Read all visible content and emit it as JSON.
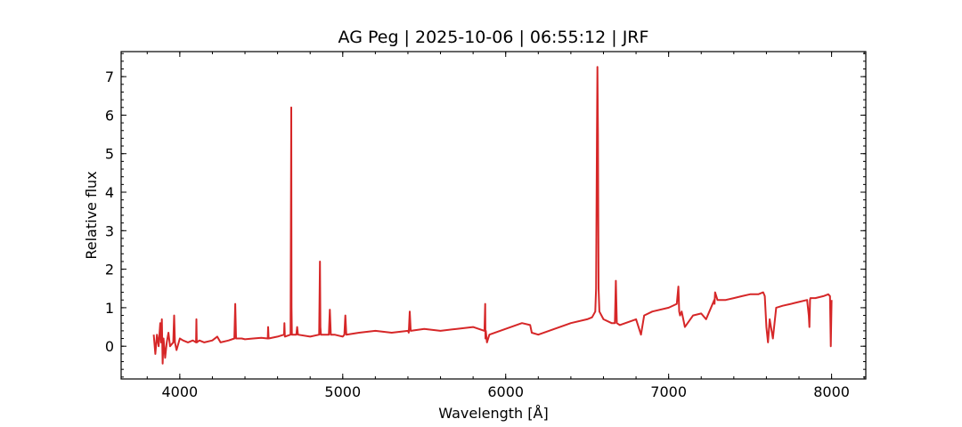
{
  "chart_data": {
    "type": "line",
    "title": "AG Peg | 2025-10-06 | 06:55:12 | JRF",
    "xlabel": "Wavelength [Å]",
    "ylabel": "Relative flux",
    "xlim": [
      3640,
      8210
    ],
    "ylim": [
      -0.85,
      7.65
    ],
    "x_ticks": [
      4000,
      5000,
      6000,
      7000,
      8000
    ],
    "y_ticks": [
      0,
      1,
      2,
      3,
      4,
      5,
      6,
      7
    ],
    "x_minor_step": 200,
    "y_minor_step": 0.2,
    "tick_direction": "in",
    "grid": false,
    "series": [
      {
        "color": "#d62728",
        "x": [
          3840,
          3850,
          3860,
          3870,
          3880,
          3885,
          3890,
          3895,
          3900,
          3910,
          3920,
          3930,
          3940,
          3960,
          3965,
          3970,
          3980,
          4000,
          4020,
          4050,
          4080,
          4100,
          4102,
          4104,
          4120,
          4150,
          4200,
          4230,
          4250,
          4300,
          4335,
          4340,
          4345,
          4380,
          4400,
          4450,
          4500,
          4540,
          4542,
          4545,
          4600,
          4640,
          4642,
          4645,
          4680,
          4684,
          4686,
          4688,
          4692,
          4715,
          4720,
          4725,
          4800,
          4855,
          4860,
          4863,
          4866,
          4900,
          4915,
          4921,
          4927,
          4950,
          5000,
          5010,
          5016,
          5022,
          5100,
          5200,
          5300,
          5400,
          5405,
          5411,
          5417,
          5500,
          5600,
          5700,
          5800,
          5870,
          5874,
          5876,
          5878,
          5885,
          5900,
          6000,
          6100,
          6150,
          6160,
          6200,
          6300,
          6400,
          6500,
          6530,
          6550,
          6555,
          6560,
          6563,
          6566,
          6570,
          6575,
          6600,
          6650,
          6670,
          6676,
          6682,
          6700,
          6800,
          6830,
          6850,
          6900,
          7000,
          7050,
          7060,
          7065,
          7070,
          7080,
          7100,
          7150,
          7200,
          7230,
          7250,
          7280,
          7282,
          7285,
          7300,
          7350,
          7400,
          7450,
          7500,
          7550,
          7580,
          7590,
          7600,
          7610,
          7620,
          7640,
          7660,
          7700,
          7750,
          7800,
          7850,
          7860,
          7864,
          7868,
          7870,
          7900,
          7950,
          7980,
          7990,
          7995,
          8000
        ],
        "y": [
          0.3,
          -0.2,
          0.3,
          0.0,
          0.6,
          0.1,
          0.7,
          -0.45,
          0.2,
          -0.3,
          0.1,
          0.35,
          0.0,
          0.1,
          0.8,
          0.1,
          -0.1,
          0.2,
          0.15,
          0.1,
          0.15,
          0.1,
          0.7,
          0.1,
          0.15,
          0.1,
          0.15,
          0.25,
          0.1,
          0.15,
          0.2,
          1.1,
          0.2,
          0.2,
          0.18,
          0.2,
          0.22,
          0.2,
          0.5,
          0.2,
          0.25,
          0.3,
          0.6,
          0.25,
          0.3,
          6.2,
          1.0,
          0.3,
          0.3,
          0.3,
          0.5,
          0.3,
          0.25,
          0.3,
          2.2,
          0.5,
          0.3,
          0.3,
          0.3,
          0.95,
          0.3,
          0.3,
          0.25,
          0.3,
          0.8,
          0.3,
          0.35,
          0.4,
          0.35,
          0.4,
          0.35,
          0.9,
          0.4,
          0.45,
          0.4,
          0.45,
          0.5,
          0.4,
          1.1,
          0.2,
          0.4,
          0.1,
          0.3,
          0.45,
          0.6,
          0.55,
          0.35,
          0.3,
          0.45,
          0.6,
          0.7,
          0.75,
          0.9,
          1.5,
          5.6,
          7.25,
          5.5,
          1.5,
          0.9,
          0.7,
          0.6,
          0.6,
          1.7,
          0.6,
          0.55,
          0.7,
          0.3,
          0.8,
          0.9,
          1.0,
          1.1,
          1.55,
          0.9,
          0.8,
          0.9,
          0.5,
          0.8,
          0.85,
          0.7,
          0.9,
          1.2,
          1.1,
          1.4,
          1.2,
          1.2,
          1.25,
          1.3,
          1.35,
          1.35,
          1.4,
          1.3,
          0.5,
          0.1,
          0.7,
          0.2,
          1.0,
          1.05,
          1.1,
          1.15,
          1.2,
          0.8,
          0.5,
          1.2,
          1.25,
          1.25,
          1.3,
          1.35,
          1.3,
          0.0,
          1.2
        ]
      }
    ]
  }
}
